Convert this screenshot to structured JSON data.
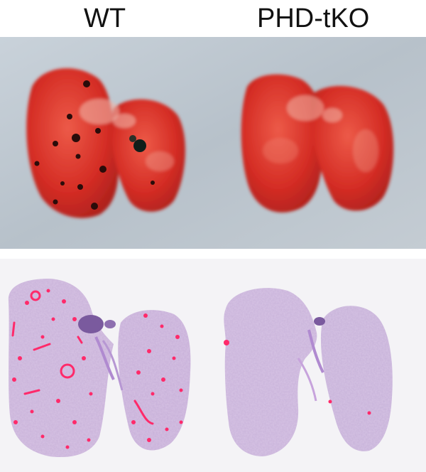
{
  "labels": {
    "left": "WT",
    "right": "PHD-tKO"
  },
  "panels": {
    "gross": {
      "background": "#b9c3cc",
      "tissue": "#d8322a"
    },
    "histology": {
      "background": "#f4f3f6",
      "tissue": "#c7b0d8",
      "stain": "#ff2a6a"
    }
  }
}
